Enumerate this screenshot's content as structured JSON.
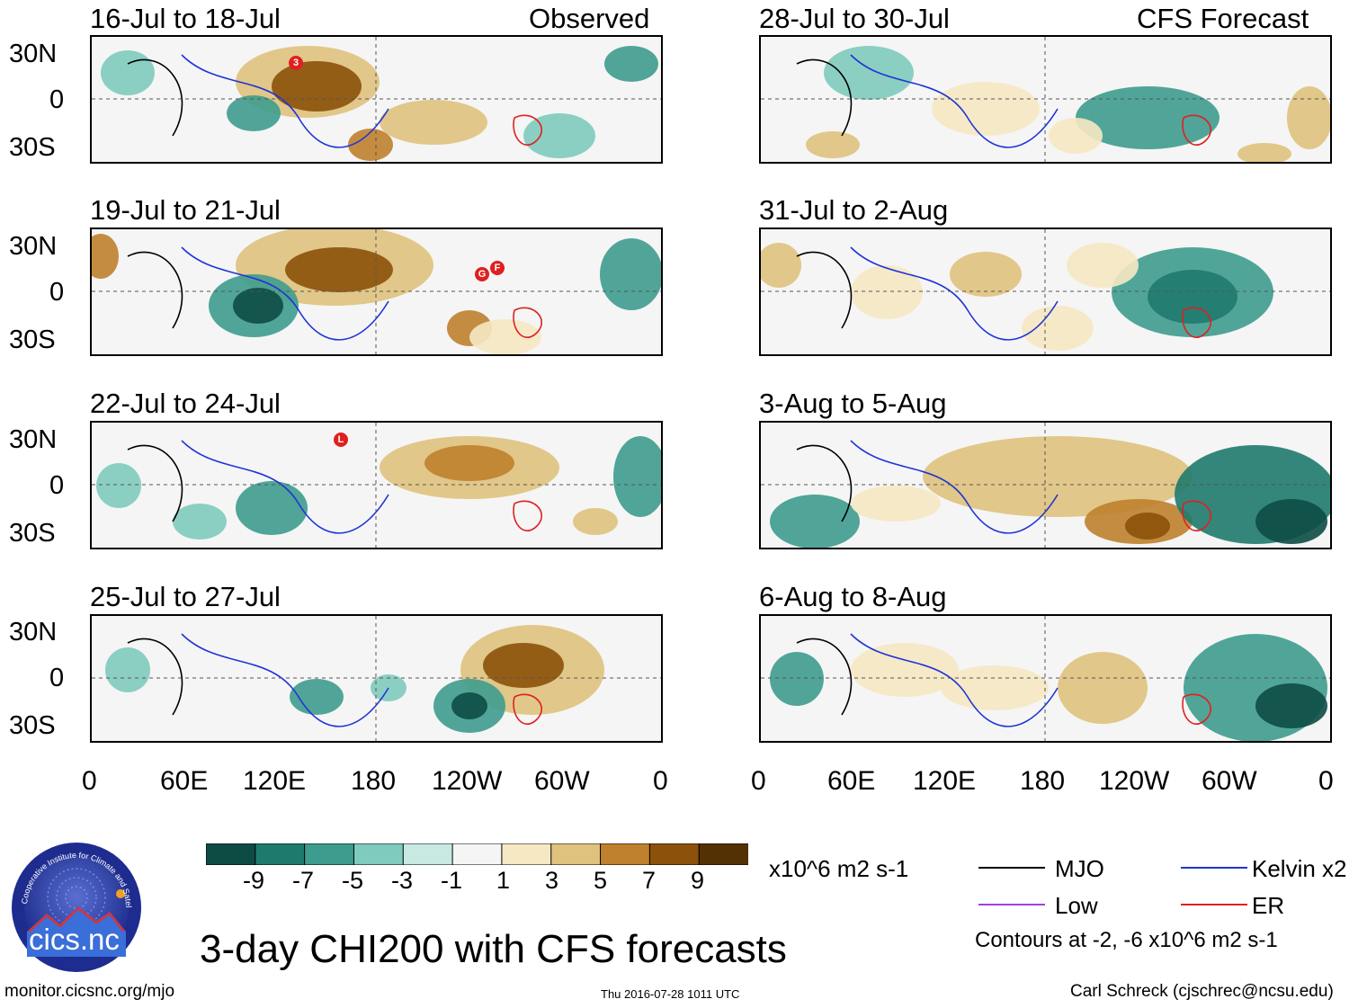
{
  "source_tag": "Observed",
  "forecast_tag": "CFS Forecast",
  "y_ticks": [
    "30N",
    "0",
    "30S"
  ],
  "x_ticks": [
    "0",
    "60E",
    "120E",
    "180",
    "120W",
    "60W",
    "0"
  ],
  "panels": [
    {
      "period": "16-Jul to 18-Jul"
    },
    {
      "period": "19-Jul to 21-Jul"
    },
    {
      "period": "22-Jul to 24-Jul"
    },
    {
      "period": "25-Jul to 27-Jul"
    },
    {
      "period": "28-Jul to 30-Jul"
    },
    {
      "period": "31-Jul to 2-Aug"
    },
    {
      "period": "3-Aug to 5-Aug"
    },
    {
      "period": "6-Aug to 8-Aug"
    }
  ],
  "storm_labels": [
    "3",
    "G",
    "F",
    "L"
  ],
  "colorbar": {
    "colors": [
      "#0d4c45",
      "#1f7a6e",
      "#3e9c8e",
      "#7fcbbd",
      "#c7e9e2",
      "#f5f5f5",
      "#f6e8c3",
      "#dfc27d",
      "#bf812d",
      "#8c510a",
      "#543005"
    ],
    "ticks": [
      "-9",
      "-7",
      "-5",
      "-3",
      "-1",
      "1",
      "3",
      "5",
      "7",
      "9"
    ],
    "units": "x10^6 m2 s-1"
  },
  "legend": {
    "items": [
      {
        "label": "MJO",
        "color": "#000000"
      },
      {
        "label": "Kelvin x2",
        "color": "#1f35d6"
      },
      {
        "label": "Low",
        "color": "#a040e0"
      },
      {
        "label": "ER",
        "color": "#e02020"
      }
    ],
    "note": "Contours at -2, -6 x10^6 m2 s-1"
  },
  "logo_text": "cics.nc",
  "logo_ring_text": "Cooperative Institute for Climate and Satellites",
  "main_title": "3-day CHI200 with CFS forecasts",
  "footer": {
    "url": "monitor.cicsnc.org/mjo",
    "timestamp": "Thu 2016-07-28 1011 UTC",
    "author": "Carl Schreck (cjschrec@ncsu.edu)"
  }
}
